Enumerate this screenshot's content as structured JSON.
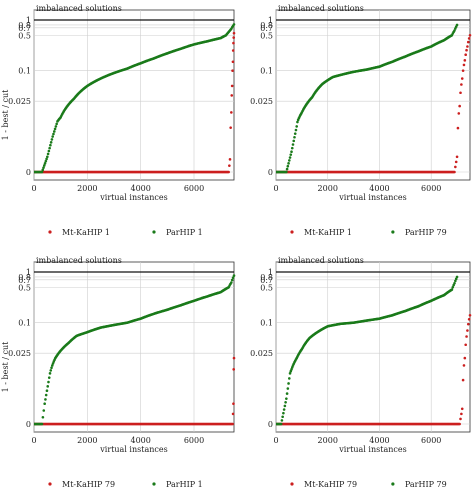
{
  "figure": {
    "note": "imbalanced solutions"
  },
  "chart_data": [
    {
      "type": "scatter",
      "xlabel": "virtual instances",
      "ylabel": "1 - best / cut",
      "xlim": [
        0,
        7500
      ],
      "xticks": [
        0,
        2000,
        4000,
        6000
      ],
      "yticks": [
        0,
        0.025,
        0.1,
        0.5,
        0.7,
        0.8,
        1
      ],
      "ytick_labels": [
        "0",
        "0.025",
        "0.1",
        "0.5",
        "0.7",
        "0.8",
        "1"
      ],
      "yscale": "symlog",
      "grid": true,
      "annotation": "imbalanced solutions",
      "imbalanced_level": 1.0,
      "legend_position": "below",
      "series": [
        {
          "name": "Mt-KaHIP 1",
          "color": "#cc1f1f",
          "points": [
            [
              0,
              0
            ],
            [
              7300,
              0
            ],
            [
              7350,
              0.0025
            ],
            [
              7400,
              0.015
            ],
            [
              7430,
              0.05
            ],
            [
              7460,
              0.15
            ],
            [
              7480,
              0.35
            ],
            [
              7500,
              0.55
            ]
          ]
        },
        {
          "name": "ParHIP 1",
          "color": "#1a7a1a",
          "points": [
            [
              0,
              0
            ],
            [
              300,
              0
            ],
            [
              500,
              0.003
            ],
            [
              700,
              0.007
            ],
            [
              1000,
              0.012
            ],
            [
              1500,
              0.028
            ],
            [
              2000,
              0.05
            ],
            [
              2500,
              0.07
            ],
            [
              3000,
              0.09
            ],
            [
              3500,
              0.11
            ],
            [
              4000,
              0.14
            ],
            [
              4500,
              0.175
            ],
            [
              5000,
              0.22
            ],
            [
              5500,
              0.27
            ],
            [
              6000,
              0.33
            ],
            [
              6500,
              0.38
            ],
            [
              7000,
              0.44
            ],
            [
              7200,
              0.5
            ],
            [
              7300,
              0.58
            ],
            [
              7400,
              0.67
            ],
            [
              7500,
              0.82
            ]
          ]
        }
      ]
    },
    {
      "type": "scatter",
      "xlabel": "virtual instances",
      "ylabel": "",
      "xlim": [
        0,
        7500
      ],
      "xticks": [
        0,
        2000,
        4000,
        6000
      ],
      "yticks": [
        0,
        0.025,
        0.1,
        0.5,
        0.7,
        0.8,
        1
      ],
      "ytick_labels": [
        "0",
        "0.025",
        "0.1",
        "0.5",
        "0.7",
        "0.8",
        "1"
      ],
      "yscale": "symlog",
      "grid": true,
      "annotation": "imbalanced solutions",
      "imbalanced_level": 1.0,
      "legend_position": "below",
      "series": [
        {
          "name": "Mt-KaHIP 1",
          "color": "#cc1f1f",
          "points": [
            [
              0,
              0
            ],
            [
              6900,
              0
            ],
            [
              7000,
              0.003
            ],
            [
              7100,
              0.02
            ],
            [
              7200,
              0.07
            ],
            [
              7300,
              0.16
            ],
            [
              7400,
              0.3
            ],
            [
              7500,
              0.5
            ]
          ]
        },
        {
          "name": "ParHIP 79",
          "color": "#1a7a1a",
          "points": [
            [
              0,
              0
            ],
            [
              400,
              0
            ],
            [
              600,
              0.004
            ],
            [
              800,
              0.009
            ],
            [
              1000,
              0.015
            ],
            [
              1400,
              0.03
            ],
            [
              1800,
              0.055
            ],
            [
              2200,
              0.075
            ],
            [
              2600,
              0.085
            ],
            [
              3000,
              0.095
            ],
            [
              3500,
              0.105
            ],
            [
              4000,
              0.12
            ],
            [
              4500,
              0.15
            ],
            [
              5000,
              0.19
            ],
            [
              5500,
              0.24
            ],
            [
              6000,
              0.3
            ],
            [
              6500,
              0.4
            ],
            [
              6800,
              0.5
            ],
            [
              6900,
              0.62
            ],
            [
              7000,
              0.8
            ]
          ]
        }
      ]
    },
    {
      "type": "scatter",
      "xlabel": "virtual instances",
      "ylabel": "1 - best / cut",
      "xlim": [
        0,
        7500
      ],
      "xticks": [
        0,
        2000,
        4000,
        6000
      ],
      "yticks": [
        0,
        0.025,
        0.1,
        0.5,
        0.7,
        0.8,
        1
      ],
      "ytick_labels": [
        "0",
        "0.025",
        "0.1",
        "0.5",
        "0.7",
        "0.8",
        "1"
      ],
      "yscale": "symlog",
      "grid": true,
      "annotation": "imbalanced solutions",
      "imbalanced_level": 1.0,
      "legend_position": "below",
      "series": [
        {
          "name": "Mt-KaHIP 79",
          "color": "#cc1f1f",
          "points": [
            [
              0,
              0
            ],
            [
              7450,
              0
            ],
            [
              7480,
              0.004
            ],
            [
              7500,
              0.02
            ]
          ]
        },
        {
          "name": "ParHIP 1",
          "color": "#1a7a1a",
          "points": [
            [
              0,
              0
            ],
            [
              300,
              0
            ],
            [
              400,
              0.004
            ],
            [
              600,
              0.01
            ],
            [
              800,
              0.02
            ],
            [
              1000,
              0.028
            ],
            [
              1300,
              0.04
            ],
            [
              1600,
              0.055
            ],
            [
              2000,
              0.065
            ],
            [
              2500,
              0.08
            ],
            [
              3000,
              0.09
            ],
            [
              3500,
              0.1
            ],
            [
              4000,
              0.12
            ],
            [
              4500,
              0.15
            ],
            [
              5000,
              0.18
            ],
            [
              5500,
              0.22
            ],
            [
              6000,
              0.27
            ],
            [
              6500,
              0.33
            ],
            [
              7000,
              0.4
            ],
            [
              7300,
              0.5
            ],
            [
              7400,
              0.62
            ],
            [
              7500,
              0.85
            ]
          ]
        }
      ]
    },
    {
      "type": "scatter",
      "xlabel": "virtual instances",
      "ylabel": "",
      "xlim": [
        0,
        7500
      ],
      "xticks": [
        0,
        2000,
        4000,
        6000
      ],
      "yticks": [
        0,
        0.025,
        0.1,
        0.5,
        0.7,
        0.8,
        1
      ],
      "ytick_labels": [
        "0",
        "0.025",
        "0.1",
        "0.5",
        "0.7",
        "0.8",
        "1"
      ],
      "yscale": "symlog",
      "grid": true,
      "annotation": "imbalanced solutions",
      "imbalanced_level": 1.0,
      "legend_position": "below",
      "series": [
        {
          "name": "Mt-KaHIP 79",
          "color": "#cc1f1f",
          "points": [
            [
              0,
              0
            ],
            [
              7100,
              0
            ],
            [
              7200,
              0.003
            ],
            [
              7300,
              0.02
            ],
            [
              7400,
              0.07
            ],
            [
              7500,
              0.14
            ]
          ]
        },
        {
          "name": "ParHIP 79",
          "color": "#1a7a1a",
          "points": [
            [
              0,
              0
            ],
            [
              200,
              0
            ],
            [
              400,
              0.005
            ],
            [
              600,
              0.012
            ],
            [
              800,
              0.02
            ],
            [
              1000,
              0.03
            ],
            [
              1300,
              0.05
            ],
            [
              1600,
              0.065
            ],
            [
              2000,
              0.085
            ],
            [
              2500,
              0.095
            ],
            [
              3000,
              0.1
            ],
            [
              3500,
              0.11
            ],
            [
              4000,
              0.12
            ],
            [
              4500,
              0.14
            ],
            [
              5000,
              0.17
            ],
            [
              5500,
              0.21
            ],
            [
              6000,
              0.27
            ],
            [
              6500,
              0.35
            ],
            [
              6800,
              0.45
            ],
            [
              6900,
              0.6
            ],
            [
              7000,
              0.8
            ]
          ]
        }
      ]
    }
  ]
}
